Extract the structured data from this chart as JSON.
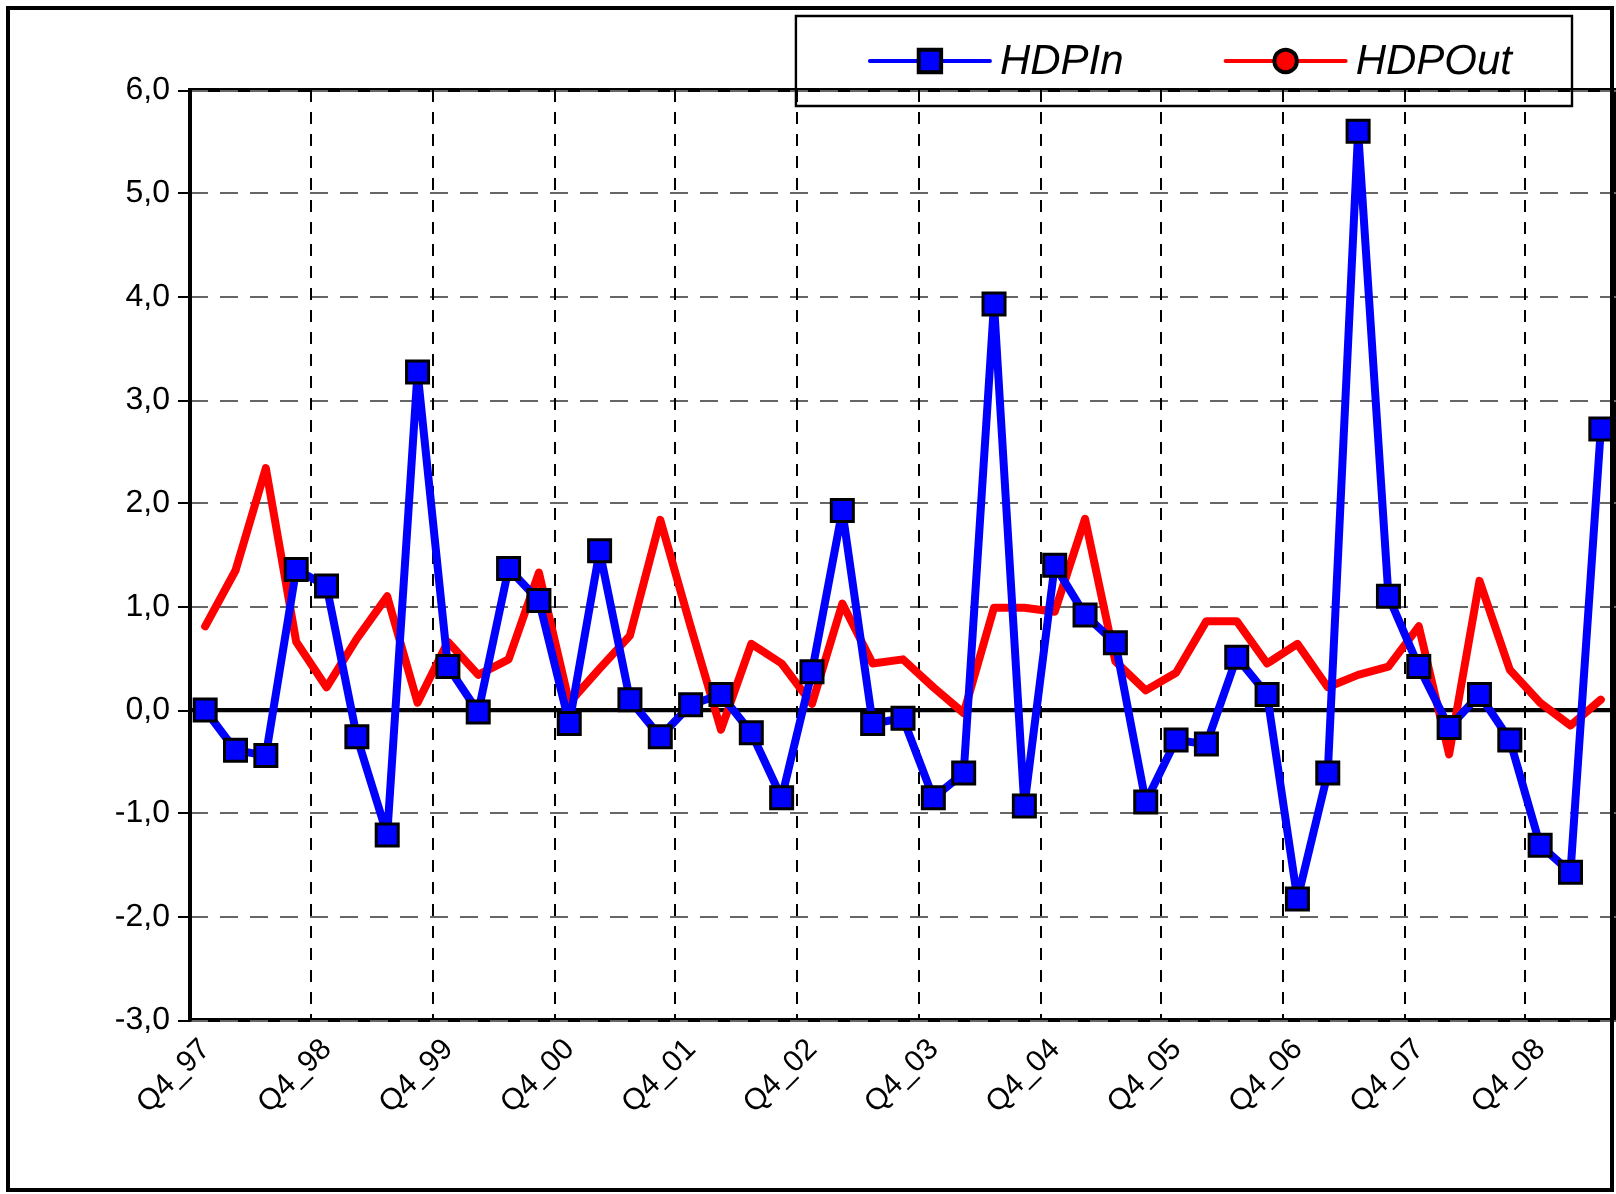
{
  "chart_data": {
    "type": "line",
    "categories": [
      "Q4_97",
      null,
      null,
      null,
      "Q4_98",
      null,
      null,
      null,
      "Q4_99",
      null,
      null,
      null,
      "Q4_00",
      null,
      null,
      null,
      "Q4_01",
      null,
      null,
      null,
      "Q4_02",
      null,
      null,
      null,
      "Q4_03",
      null,
      null,
      null,
      "Q4_04",
      null,
      null,
      null,
      "Q4_05",
      null,
      null,
      null,
      "Q4_06",
      null,
      null,
      null,
      "Q4_07",
      null,
      null,
      null,
      "Q4_08",
      null,
      null
    ],
    "series": [
      {
        "name": "HDPIn",
        "color": "#0000ff",
        "marker": "square",
        "values": [
          0.0,
          -0.39,
          -0.44,
          1.36,
          1.2,
          -0.26,
          -1.21,
          3.27,
          0.42,
          -0.02,
          1.37,
          1.06,
          -0.13,
          1.54,
          0.1,
          -0.26,
          0.05,
          0.15,
          -0.22,
          -0.85,
          0.37,
          1.93,
          -0.13,
          -0.08,
          -0.85,
          -0.61,
          3.93,
          -0.93,
          1.4,
          0.92,
          0.65,
          -0.89,
          -0.29,
          -0.33,
          0.51,
          0.15,
          -1.83,
          -0.61,
          5.6,
          1.1,
          0.42,
          -0.17,
          0.15,
          -0.29,
          -1.31,
          -1.57,
          2.72
        ]
      },
      {
        "name": "HDPOut",
        "color": "#ff0000",
        "marker": "none",
        "values": [
          0.81,
          1.35,
          2.34,
          0.66,
          0.22,
          0.69,
          1.1,
          0.07,
          0.66,
          0.34,
          0.49,
          1.33,
          0.07,
          0.4,
          0.72,
          1.84,
          0.81,
          -0.19,
          0.64,
          0.45,
          0.06,
          1.03,
          0.45,
          0.49,
          0.22,
          -0.03,
          0.99,
          0.99,
          0.95,
          1.85,
          0.47,
          0.19,
          0.36,
          0.86,
          0.86,
          0.45,
          0.64,
          0.22,
          0.34,
          0.42,
          0.81,
          -0.43,
          1.25,
          0.39,
          0.07,
          -0.15,
          0.1
        ]
      }
    ],
    "ylim": [
      -3,
      6
    ],
    "yticks": [
      {
        "value": -3,
        "label": "-3,0"
      },
      {
        "value": -2,
        "label": "-2,0"
      },
      {
        "value": -1,
        "label": "-1,0"
      },
      {
        "value": 0,
        "label": "0,0"
      },
      {
        "value": 1,
        "label": "1,0"
      },
      {
        "value": 2,
        "label": "2,0"
      },
      {
        "value": 3,
        "label": "3,0"
      },
      {
        "value": 4,
        "label": "4,0"
      },
      {
        "value": 5,
        "label": "5,0"
      },
      {
        "value": 6,
        "label": "6,0"
      }
    ],
    "ref_lines": [
      {
        "axis": "y",
        "value": 0,
        "color": "#000000",
        "line_style": "solid"
      }
    ],
    "grid": true,
    "legend": "top right",
    "line_style": "solid"
  }
}
